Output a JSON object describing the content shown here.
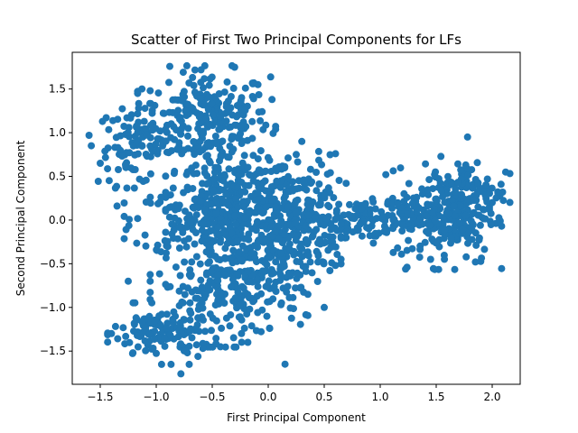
{
  "chart_data": {
    "type": "scatter",
    "title": "Scatter of First Two Principal Components for LFs",
    "xlabel": "First Principal Component",
    "ylabel": "Second Principal Component",
    "xlim": [
      -1.75,
      2.25
    ],
    "ylim": [
      -1.88,
      1.92
    ],
    "xticks": [
      -1.5,
      -1.0,
      -0.5,
      0.0,
      0.5,
      1.0,
      1.5,
      2.0
    ],
    "xtick_labels": [
      "−1.5",
      "−1.0",
      "−0.5",
      "0.0",
      "0.5",
      "1.0",
      "1.5",
      "2.0"
    ],
    "yticks": [
      -1.5,
      -1.0,
      -0.5,
      0.0,
      0.5,
      1.0,
      1.5
    ],
    "ytick_labels": [
      "−1.5",
      "−1.0",
      "−0.5",
      "0.0",
      "0.5",
      "1.0",
      "1.5"
    ],
    "grid": false,
    "color": "#1f77b4",
    "clusters": [
      {
        "cx": -0.55,
        "cy": 1.15,
        "sx": 0.28,
        "sy": 0.28,
        "n": 260
      },
      {
        "cx": -1.2,
        "cy": 0.85,
        "sx": 0.16,
        "sy": 0.22,
        "n": 90
      },
      {
        "cx": -0.3,
        "cy": 0.3,
        "sx": 0.28,
        "sy": 0.2,
        "n": 200
      },
      {
        "cx": -0.45,
        "cy": 0.0,
        "sx": 0.38,
        "sy": 0.18,
        "n": 220
      },
      {
        "cx": 0.3,
        "cy": 0.1,
        "sx": 0.18,
        "sy": 0.32,
        "n": 160
      },
      {
        "cx": -0.35,
        "cy": -0.75,
        "sx": 0.32,
        "sy": 0.32,
        "n": 260
      },
      {
        "cx": -0.95,
        "cy": -1.3,
        "sx": 0.22,
        "sy": 0.16,
        "n": 120
      },
      {
        "cx": 0.1,
        "cy": -0.4,
        "sx": 0.25,
        "sy": 0.25,
        "n": 120
      },
      {
        "cx": 0.9,
        "cy": 0.0,
        "sx": 0.3,
        "sy": 0.12,
        "n": 150
      },
      {
        "cx": 1.6,
        "cy": 0.05,
        "sx": 0.22,
        "sy": 0.28,
        "n": 220
      },
      {
        "cx": 1.85,
        "cy": 0.35,
        "sx": 0.14,
        "sy": 0.18,
        "n": 70
      }
    ],
    "outliers": [
      [
        -1.6,
        0.97
      ],
      [
        -1.58,
        0.85
      ],
      [
        -1.5,
        0.65
      ],
      [
        -1.35,
        0.16
      ],
      [
        -0.78,
        -1.76
      ],
      [
        -0.3,
        1.75
      ],
      [
        0.3,
        0.9
      ],
      [
        1.78,
        0.95
      ],
      [
        2.12,
        0.55
      ],
      [
        0.6,
        -0.52
      ],
      [
        0.63,
        0.18
      ],
      [
        1.05,
        0.52
      ],
      [
        1.45,
        -0.45
      ],
      [
        2.0,
        0.2
      ],
      [
        -1.4,
        -1.3
      ],
      [
        -1.25,
        -0.7
      ],
      [
        0.15,
        -1.65
      ],
      [
        0.5,
        -1.0
      ],
      [
        -0.6,
        1.72
      ],
      [
        0.25,
        0.75
      ]
    ]
  }
}
